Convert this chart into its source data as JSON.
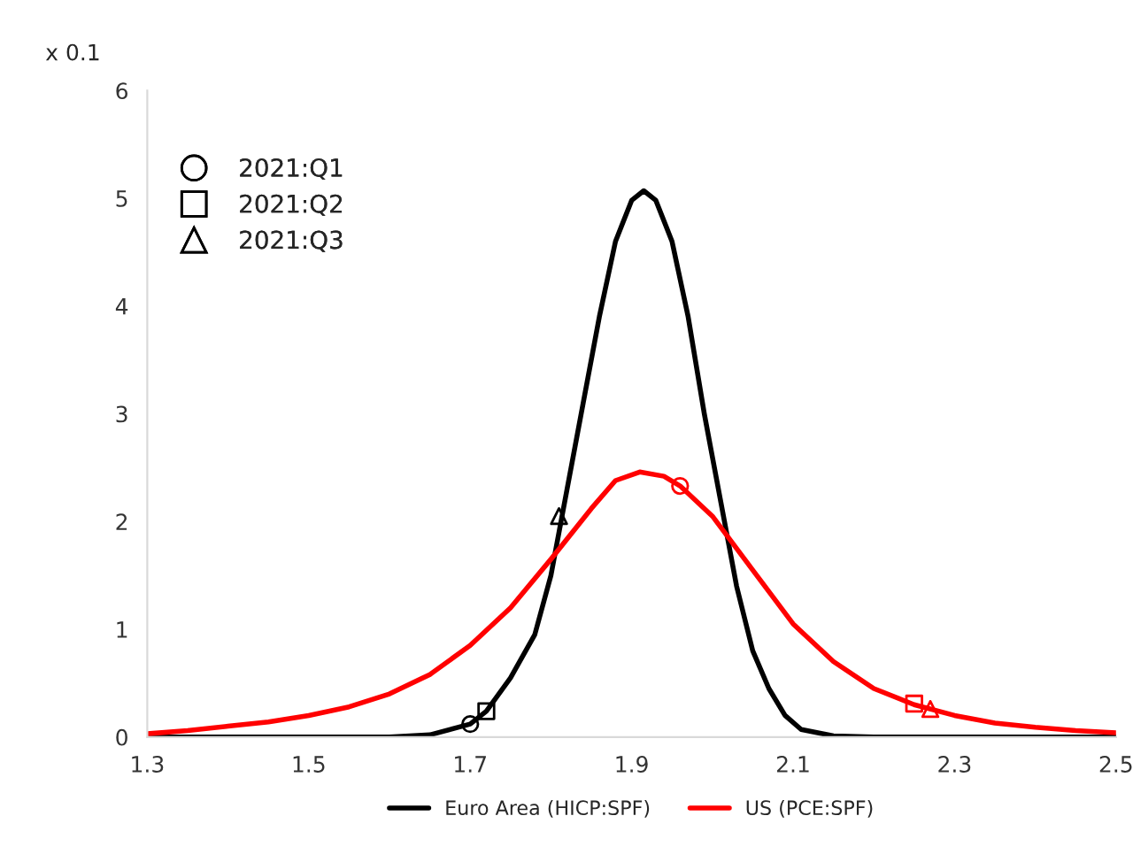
{
  "chart_data": {
    "type": "line",
    "ylabel": "x 0.1",
    "xlim": [
      1.3,
      2.5
    ],
    "ylim": [
      0,
      6
    ],
    "xticks": [
      1.3,
      1.5,
      1.7,
      1.9,
      2.1,
      2.3,
      2.5
    ],
    "yticks": [
      0,
      1,
      2,
      3,
      4,
      5,
      6
    ],
    "grid": false,
    "legend": "bottom",
    "marker": "none",
    "line_style": "solid",
    "series": [
      {
        "name": "Euro Area (HICP:SPF)",
        "color": "#000000",
        "x": [
          1.3,
          1.6,
          1.65,
          1.7,
          1.72,
          1.75,
          1.78,
          1.8,
          1.82,
          1.84,
          1.86,
          1.88,
          1.9,
          1.915,
          1.93,
          1.95,
          1.97,
          1.99,
          2.01,
          2.03,
          2.05,
          2.07,
          2.09,
          2.11,
          2.15,
          2.2,
          2.5
        ],
        "values": [
          0,
          0,
          0.02,
          0.12,
          0.24,
          0.55,
          0.95,
          1.5,
          2.3,
          3.1,
          3.9,
          4.6,
          4.98,
          5.07,
          4.98,
          4.6,
          3.9,
          3.0,
          2.2,
          1.4,
          0.8,
          0.45,
          0.2,
          0.07,
          0.01,
          0,
          0
        ]
      },
      {
        "name": "US (PCE:SPF)",
        "color": "#ff0000",
        "x": [
          1.3,
          1.35,
          1.4,
          1.45,
          1.5,
          1.55,
          1.6,
          1.65,
          1.7,
          1.75,
          1.8,
          1.85,
          1.88,
          1.91,
          1.94,
          1.96,
          2.0,
          2.05,
          2.1,
          2.15,
          2.2,
          2.25,
          2.3,
          2.35,
          2.4,
          2.45,
          2.5
        ],
        "values": [
          0.03,
          0.06,
          0.1,
          0.14,
          0.2,
          0.28,
          0.4,
          0.58,
          0.85,
          1.2,
          1.65,
          2.12,
          2.38,
          2.46,
          2.42,
          2.33,
          2.05,
          1.55,
          1.05,
          0.7,
          0.45,
          0.3,
          0.2,
          0.13,
          0.09,
          0.06,
          0.04
        ]
      },
      {
        "name": "2021:Q1",
        "type": "scatter",
        "marker": "circle",
        "colors": [
          "#000000",
          "#ff0000"
        ],
        "x": [
          1.7,
          1.96
        ],
        "values": [
          0.12,
          2.33
        ]
      },
      {
        "name": "2021:Q2",
        "type": "scatter",
        "marker": "square",
        "colors": [
          "#000000",
          "#ff0000"
        ],
        "x": [
          1.72,
          2.25
        ],
        "values": [
          0.24,
          0.31
        ]
      },
      {
        "name": "2021:Q3",
        "type": "scatter",
        "marker": "triangle",
        "colors": [
          "#000000",
          "#ff0000"
        ],
        "x": [
          1.81,
          2.27
        ],
        "values": [
          2.05,
          0.26
        ]
      }
    ]
  }
}
